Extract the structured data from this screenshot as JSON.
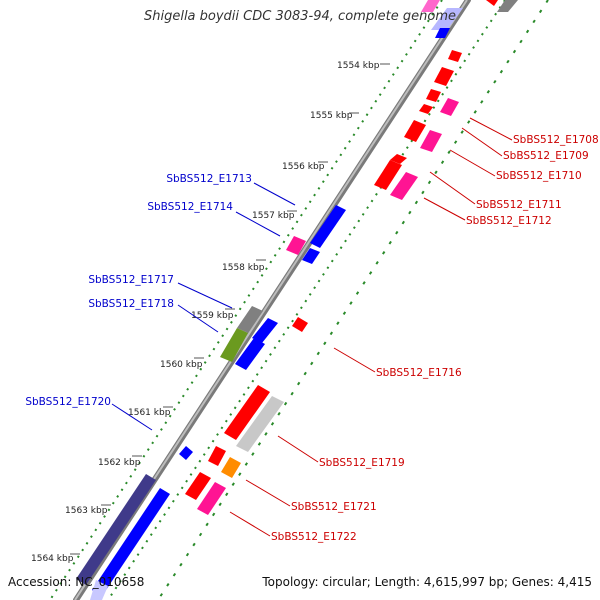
{
  "title": "Shigella boydii CDC 3083-94, complete genome",
  "footer": {
    "accession": "Accession: NC_010658",
    "summary": "Topology: circular; Length: 4,615,997 bp; Genes: 4,415"
  },
  "colors": {
    "backbone": "#8a8a8a",
    "tick_dots": "#2a8a2a",
    "red": "#ff0000",
    "blue": "#0000ff",
    "pink": "#ff1493",
    "gray": "#808080",
    "light_gray": "#c8c8c8",
    "olive": "#6b9a1f",
    "orange": "#ff8c00",
    "navy": "#3f3a8a",
    "label_blue": "#0000cc",
    "label_red": "#cc0000"
  },
  "ticks": [
    {
      "label": "1554 kbp"
    },
    {
      "label": "1555 kbp"
    },
    {
      "label": "1556 kbp"
    },
    {
      "label": "1557 kbp"
    },
    {
      "label": "1558 kbp"
    },
    {
      "label": "1559 kbp"
    },
    {
      "label": "1560 kbp"
    },
    {
      "label": "1561 kbp"
    },
    {
      "label": "1562 kbp"
    },
    {
      "label": "1563 kbp"
    },
    {
      "label": "1564 kbp"
    }
  ],
  "gene_labels_left": [
    {
      "id": "SbBS512_E1713"
    },
    {
      "id": "SbBS512_E1714"
    },
    {
      "id": "SbBS512_E1717"
    },
    {
      "id": "SbBS512_E1718"
    },
    {
      "id": "SbBS512_E1720"
    }
  ],
  "gene_labels_right": [
    {
      "id": "SbBS512_E1708"
    },
    {
      "id": "SbBS512_E1709"
    },
    {
      "id": "SbBS512_E1710"
    },
    {
      "id": "SbBS512_E1711"
    },
    {
      "id": "SbBS512_E1712"
    },
    {
      "id": "SbBS512_E1716"
    },
    {
      "id": "SbBS512_E1719"
    },
    {
      "id": "SbBS512_E1721"
    },
    {
      "id": "SbBS512_E1722"
    }
  ]
}
